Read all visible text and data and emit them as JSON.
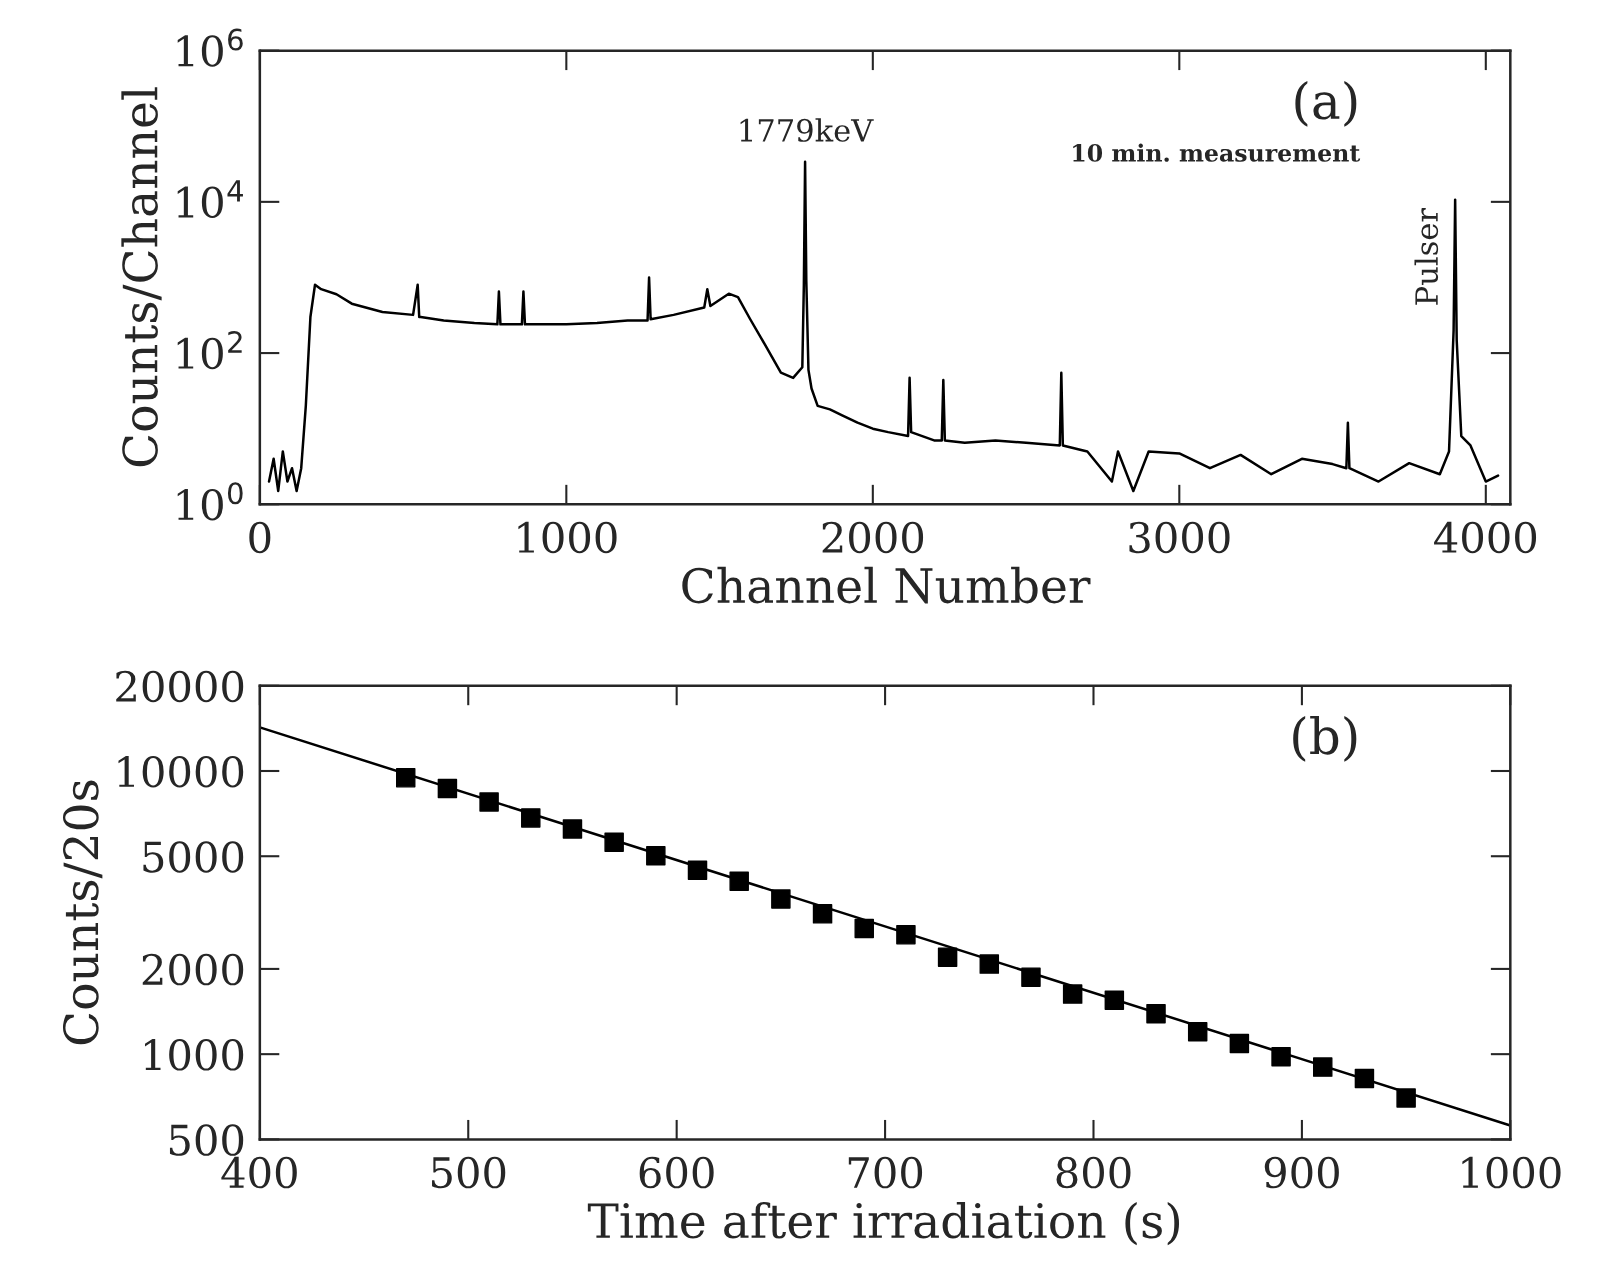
{
  "chart_data": [
    {
      "type": "line",
      "xlabel": "Channel Number",
      "ylabel": "Counts/Channel",
      "log": "y",
      "xlim": [
        0,
        4080
      ],
      "ylim": [
        1,
        1000000
      ],
      "xticks": [
        0,
        1000,
        2000,
        3000,
        4000
      ],
      "yticks": [
        {
          "value": 1,
          "label": "10$^{0}$"
        },
        {
          "value": 100,
          "label": "10$^{2}$"
        },
        {
          "value": 10000,
          "label": "10$^{4}$"
        },
        {
          "value": 1000000,
          "label": "10$^{6}$"
        }
      ],
      "annotations": [
        "(a)",
        {
          "text": "1779keV",
          "x": 1779,
          "y": 34000
        },
        "10 min. measurement",
        {
          "text": "Pulser",
          "x": 3900,
          "y": 10700
        }
      ],
      "series": [
        {
          "color": "#000000",
          "x": [
            30,
            45,
            60,
            75,
            90,
            105,
            120,
            135,
            150,
            165,
            180,
            200,
            250,
            300,
            400,
            500,
            515,
            520,
            525,
            600,
            700,
            775,
            780,
            785,
            855,
            860,
            865,
            1000,
            1100,
            1200,
            1265,
            1270,
            1275,
            1350,
            1450,
            1460,
            1470,
            1530,
            1560,
            1600,
            1650,
            1700,
            1740,
            1770,
            1775,
            1779,
            1783,
            1790,
            1800,
            1820,
            1860,
            1900,
            1950,
            2000,
            2050,
            2115,
            2120,
            2125,
            2200,
            2225,
            2230,
            2235,
            2300,
            2400,
            2500,
            2610,
            2615,
            2620,
            2700,
            2780,
            2800,
            2850,
            2900,
            3000,
            3100,
            3200,
            3300,
            3400,
            3500,
            3545,
            3550,
            3555,
            3650,
            3750,
            3850,
            3880,
            3895,
            3900,
            3905,
            3920,
            3950,
            4000,
            4040
          ],
          "values": [
            2,
            4,
            1.5,
            5,
            2,
            3,
            1.5,
            3,
            20,
            300,
            800,
            700,
            600,
            450,
            350,
            320,
            800,
            300,
            300,
            270,
            250,
            240,
            650,
            240,
            240,
            650,
            240,
            240,
            250,
            270,
            270,
            1000,
            280,
            320,
            400,
            700,
            420,
            610,
            550,
            280,
            125,
            55,
            47,
            65,
            800,
            34000,
            900,
            60,
            34,
            20,
            18,
            15,
            12,
            10,
            9,
            8,
            47,
            9,
            7,
            7,
            44,
            7,
            6.5,
            7,
            6.5,
            6,
            55,
            6,
            5,
            2,
            5,
            1.5,
            5,
            4.7,
            3,
            4.5,
            2.5,
            4,
            3.4,
            3,
            12,
            3,
            2,
            3.5,
            2.5,
            5,
            200,
            10700,
            150,
            8,
            6,
            2,
            2.4
          ]
        }
      ]
    },
    {
      "type": "scatter",
      "xlabel": "Time after irradiation (s)",
      "ylabel": "Counts/20s",
      "log": "y",
      "xlim": [
        400,
        1000
      ],
      "ylim": [
        500,
        20000
      ],
      "xticks": [
        400,
        500,
        600,
        700,
        800,
        900,
        1000
      ],
      "yticks": [
        500,
        1000,
        2000,
        5000,
        10000,
        20000
      ],
      "annotations": [
        "(b)"
      ],
      "series": [
        {
          "color": "#000000",
          "marker": "square",
          "x": [
            470,
            490,
            510,
            530,
            550,
            570,
            590,
            610,
            630,
            650,
            670,
            690,
            710,
            730,
            750,
            770,
            790,
            810,
            830,
            850,
            870,
            890,
            910,
            930,
            950
          ],
          "values": [
            9460,
            8670,
            7770,
            6830,
            6240,
            5600,
            5020,
            4460,
            4080,
            3530,
            3130,
            2780,
            2640,
            2200,
            2080,
            1870,
            1630,
            1550,
            1390,
            1200,
            1090,
            980,
            900,
            820,
            700
          ]
        },
        {
          "type": "line",
          "color": "#000000",
          "x": [
            400,
            1000
          ],
          "values": [
            14260,
            560
          ]
        }
      ]
    }
  ]
}
